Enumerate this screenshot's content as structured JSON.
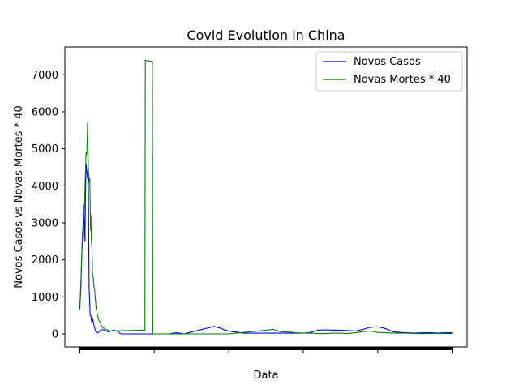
{
  "chart_data": {
    "type": "line",
    "title": "Covid Evolution in China",
    "xlabel": "Data",
    "ylabel": "Novos Casos vs Novas Mortes * 40",
    "ylim": [
      -350,
      7750
    ],
    "xlim": [
      -40,
      1040
    ],
    "yticks": [
      0,
      1000,
      2000,
      3000,
      4000,
      5000,
      6000,
      7000
    ],
    "grid": false,
    "legend_position": "upper right",
    "series": [
      {
        "name": "Novos Casos",
        "color": "#0000ff",
        "x": [
          0,
          3,
          5,
          7,
          9,
          10,
          12,
          14,
          15,
          17,
          19,
          21,
          23,
          25,
          28,
          30,
          32,
          35,
          38,
          40,
          42,
          44,
          46,
          48,
          50,
          52,
          55,
          58,
          60,
          65,
          70,
          75,
          80,
          90,
          100,
          110,
          120,
          130,
          140,
          150,
          160,
          170,
          175,
          180,
          185,
          190,
          200,
          220,
          240,
          260,
          280,
          300,
          320,
          340,
          360,
          380,
          390,
          400,
          410,
          420,
          430,
          440,
          460,
          480,
          500,
          520,
          540,
          560,
          580,
          600,
          620,
          640,
          660,
          680,
          700,
          720,
          740,
          760,
          780,
          800,
          820,
          840,
          860,
          880,
          900,
          920,
          940,
          960,
          980,
          1000
        ],
        "y": [
          700,
          1200,
          2000,
          2500,
          3000,
          3500,
          3100,
          2500,
          3500,
          4600,
          4400,
          4200,
          4300,
          1300,
          500,
          500,
          300,
          400,
          250,
          150,
          100,
          50,
          30,
          30,
          40,
          60,
          90,
          110,
          120,
          100,
          80,
          60,
          60,
          100,
          80,
          0,
          0,
          0,
          0,
          0,
          0,
          0,
          0,
          0,
          0,
          0,
          0,
          0,
          0,
          30,
          0,
          50,
          100,
          150,
          200,
          150,
          100,
          80,
          60,
          50,
          30,
          20,
          20,
          20,
          20,
          20,
          20,
          20,
          20,
          20,
          40,
          100,
          110,
          100,
          100,
          90,
          80,
          120,
          180,
          190,
          150,
          60,
          40,
          30,
          20,
          30,
          30,
          20,
          30,
          30
        ]
      },
      {
        "name": "Novas Mortes * 40",
        "color": "#008000",
        "x": [
          0,
          4,
          7,
          10,
          13,
          15,
          17,
          19,
          21,
          23,
          25,
          27,
          29,
          30,
          31,
          32,
          33,
          34,
          35,
          36,
          37,
          38,
          40,
          42,
          44,
          46,
          48,
          50,
          55,
          60,
          65,
          70,
          75,
          80,
          175,
          176,
          180,
          195,
          196,
          200,
          220,
          240,
          260,
          280,
          300,
          320,
          340,
          360,
          380,
          400,
          420,
          440,
          460,
          480,
          500,
          520,
          540,
          560,
          580,
          600,
          620,
          640,
          660,
          680,
          700,
          720,
          740,
          760,
          780,
          800,
          820,
          840,
          860,
          880,
          900,
          920,
          940,
          960,
          980,
          1000
        ],
        "y": [
          650,
          1700,
          2700,
          3000,
          3500,
          4300,
          4900,
          4850,
          5700,
          4500,
          4100,
          4200,
          2800,
          3200,
          2600,
          2400,
          2300,
          1700,
          1600,
          1550,
          1400,
          1300,
          1200,
          900,
          700,
          600,
          500,
          400,
          300,
          200,
          150,
          120,
          100,
          80,
          100,
          7400,
          7380,
          7360,
          0,
          0,
          0,
          0,
          0,
          0,
          0,
          0,
          0,
          0,
          0,
          0,
          20,
          40,
          60,
          80,
          100,
          120,
          60,
          50,
          30,
          20,
          20,
          10,
          10,
          20,
          20,
          10,
          30,
          60,
          80,
          40,
          30,
          20,
          20,
          20,
          10,
          10,
          10,
          10,
          10,
          10
        ]
      }
    ]
  }
}
